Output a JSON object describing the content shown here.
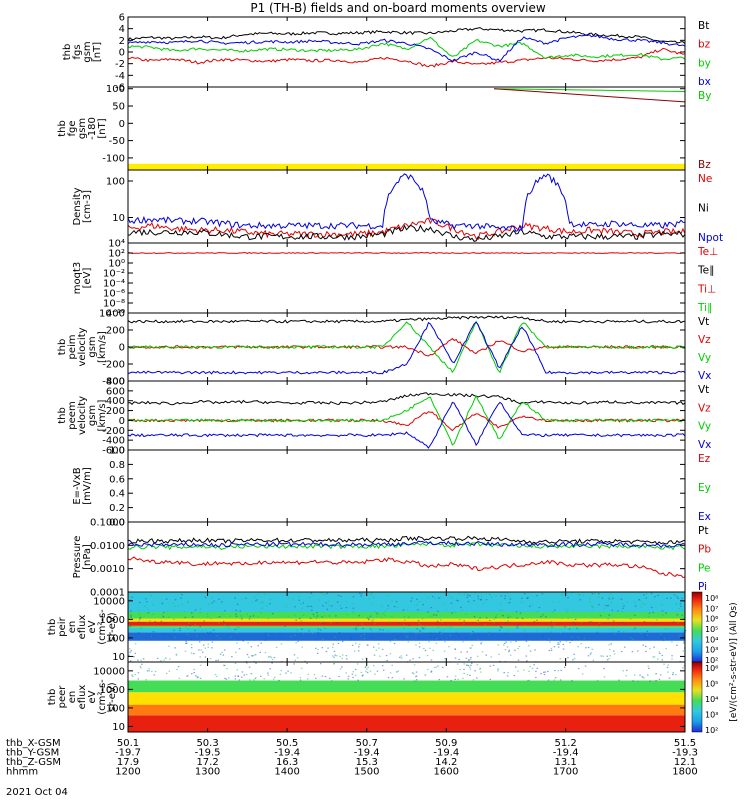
{
  "title": "P1 (TH-B) fields and on-board moments overview",
  "colors": {
    "black": "#000000",
    "red": "#e00000",
    "green": "#00cc00",
    "blue": "#0000dd",
    "yellow": "#ffee00",
    "darkred": "#8b0000"
  },
  "chart_data": [
    {
      "type": "line",
      "id": "fgs",
      "ylabel": [
        "thb",
        "fgs",
        "gsm",
        "[nT]"
      ],
      "ylim": [
        -6,
        6
      ],
      "ticks": [
        "6",
        "4",
        "2",
        "0",
        "-2",
        "-4",
        "-6"
      ],
      "tick_values": [
        6,
        4,
        2,
        0,
        -2,
        -4,
        -6
      ],
      "series": [
        {
          "name": "Bt",
          "color": "#000000",
          "values": [
            2.2,
            2.5,
            2.3,
            2.6,
            2.4,
            3.0,
            3.2,
            3.1,
            3.3,
            3.2,
            3.3,
            3.5,
            3.3,
            3.2,
            3.6,
            4.0,
            3.8,
            3.6,
            3.8,
            3.4,
            3.0,
            2.8,
            2.6,
            1.8,
            1.5
          ]
        },
        {
          "name": "bz",
          "color": "#e00000",
          "values": [
            -1.0,
            -1.5,
            -1.2,
            -1.8,
            -1.3,
            -1.4,
            -1.6,
            -1.3,
            -1.5,
            -1.4,
            -1.8,
            -1.0,
            -1.5,
            -2.5,
            -1.6,
            -2.2,
            -1.8,
            -1.4,
            -1.0,
            -1.2,
            -1.5,
            -1.3,
            -1.0,
            0.5,
            -0.5
          ]
        },
        {
          "name": "by",
          "color": "#00cc00",
          "values": [
            1.0,
            0.8,
            0.2,
            0.6,
            0.3,
            0.2,
            0.5,
            0.4,
            0.2,
            0.3,
            0.5,
            1.5,
            0.5,
            2.5,
            -1.0,
            2.0,
            1.0,
            1.5,
            -1.0,
            -0.5,
            -0.8,
            -0.6,
            -0.4,
            -1.2,
            -1.0
          ]
        },
        {
          "name": "bx",
          "color": "#0000dd",
          "values": [
            1.5,
            1.8,
            1.6,
            2.0,
            1.5,
            1.6,
            1.8,
            1.7,
            1.9,
            1.6,
            1.4,
            2.0,
            1.5,
            0.5,
            -1.5,
            0.0,
            -1.5,
            2.5,
            1.5,
            2.5,
            2.8,
            2.2,
            2.0,
            1.6,
            1.0
          ]
        }
      ]
    },
    {
      "type": "line",
      "id": "fge",
      "ylabel": [
        "thb",
        "fge",
        "gsm",
        "-180",
        "[nT]"
      ],
      "ylim": [
        -135,
        105
      ],
      "ticks": [
        "100",
        "50",
        "0",
        "-50",
        "-100"
      ],
      "tick_values": [
        100,
        50,
        0,
        -50,
        -100
      ],
      "series": [
        {
          "name": "By",
          "color": "#00cc00",
          "x": [
            51.02,
            51.5
          ],
          "values": [
            100,
            92
          ]
        },
        {
          "name": "Bz",
          "color": "#8b0000",
          "x": [
            51.02,
            51.5
          ],
          "values": [
            100,
            62
          ]
        }
      ]
    },
    {
      "type": "line",
      "id": "density",
      "ylabel": [
        "Density",
        "[cm-3]"
      ],
      "log": true,
      "ylim": [
        2,
        200
      ],
      "ticks": [
        "100",
        "10"
      ],
      "tick_values": [
        100,
        10
      ],
      "series": [
        {
          "name": "Ne",
          "color": "#e00000",
          "values": [
            5,
            6,
            5,
            4.5,
            4.5,
            4,
            3.5,
            3.5,
            3.5,
            3.5,
            3.5,
            4,
            6,
            8,
            5,
            3,
            4,
            6,
            5,
            4,
            4.5,
            4,
            3.5,
            4,
            4
          ]
        },
        {
          "name": "Ni",
          "color": "#000000",
          "values": [
            4,
            4,
            4,
            4,
            3.5,
            3,
            3,
            3,
            3,
            3,
            3,
            3.5,
            5,
            5,
            3,
            2.5,
            3,
            4,
            3,
            3,
            3,
            3,
            3,
            3.5,
            3.5
          ]
        },
        {
          "name": "Npot",
          "color": "#0000dd",
          "values": [
            8,
            9,
            8,
            8,
            7,
            6,
            6,
            6,
            6,
            6,
            6,
            6,
            150,
            8,
            6,
            6,
            5,
            5,
            150,
            7,
            6,
            7,
            6,
            6,
            7
          ]
        }
      ]
    },
    {
      "type": "line",
      "id": "moqt3",
      "ylabel": [
        "moqt3",
        "[eV]"
      ],
      "log": true,
      "ylim": [
        1e-10,
        10000
      ],
      "ticks": [
        "10⁴",
        "10²",
        "10⁰",
        "10⁻²",
        "10⁻⁴",
        "10⁻⁶",
        "10⁻⁸",
        "10⁻¹⁰"
      ],
      "tick_values": [
        10000,
        100,
        1,
        0.01,
        0.0001,
        1e-06,
        1e-08,
        1e-10
      ],
      "series": [
        {
          "name": "Te⊥",
          "color": "#e00000",
          "values": [
            100,
            100,
            100,
            100,
            100,
            100,
            100,
            100,
            100,
            100,
            100,
            100,
            100,
            100,
            100,
            100,
            100,
            100,
            100,
            100,
            100,
            100,
            100,
            100,
            100
          ]
        },
        {
          "name": "Te∥",
          "color": "#000000",
          "values": []
        },
        {
          "name": "Ti⊥",
          "color": "#e00000",
          "values": []
        },
        {
          "name": "Ti∥",
          "color": "#00cc00",
          "values": []
        }
      ]
    },
    {
      "type": "line",
      "id": "peim",
      "ylabel": [
        "thb",
        "peim",
        "velocity",
        "gsm",
        "[km/s]"
      ],
      "ylim": [
        -400,
        400
      ],
      "ticks": [
        "400",
        "200",
        "0",
        "-200",
        "-400"
      ],
      "tick_values": [
        400,
        200,
        0,
        -200,
        -400
      ],
      "series": [
        {
          "name": "Vt",
          "color": "#000000",
          "values": [
            300,
            300,
            300,
            300,
            300,
            300,
            300,
            300,
            300,
            300,
            300,
            300,
            320,
            330,
            340,
            350,
            350,
            350,
            300,
            300,
            300,
            300,
            300,
            300,
            300
          ]
        },
        {
          "name": "Vz",
          "color": "#e00000",
          "values": [
            0,
            0,
            0,
            0,
            0,
            0,
            0,
            0,
            0,
            0,
            0,
            0,
            0,
            -100,
            100,
            -80,
            80,
            -50,
            0,
            0,
            0,
            0,
            0,
            0,
            0
          ]
        },
        {
          "name": "Vy",
          "color": "#00cc00",
          "values": [
            0,
            0,
            0,
            0,
            0,
            0,
            0,
            0,
            0,
            0,
            0,
            0,
            300,
            0,
            -300,
            300,
            -300,
            300,
            0,
            0,
            0,
            0,
            0,
            0,
            0
          ]
        },
        {
          "name": "Vx",
          "color": "#0000dd",
          "values": [
            -300,
            -300,
            -300,
            -300,
            -300,
            -300,
            -300,
            -300,
            -300,
            -300,
            -300,
            -300,
            -200,
            300,
            -200,
            300,
            -250,
            250,
            -300,
            -300,
            -300,
            -300,
            -300,
            -300,
            -300
          ]
        }
      ]
    },
    {
      "type": "line",
      "id": "peem",
      "ylabel": [
        "thb",
        "peem",
        "velocity",
        "gsm",
        "[km/s]"
      ],
      "ylim": [
        -600,
        800
      ],
      "ticks": [
        "800",
        "600",
        "400",
        "200",
        "0",
        "-200",
        "-400",
        "-600"
      ],
      "tick_values": [
        800,
        600,
        400,
        200,
        0,
        -200,
        -400,
        -600
      ],
      "series": [
        {
          "name": "Vt",
          "color": "#000000",
          "values": [
            350,
            360,
            340,
            380,
            360,
            380,
            370,
            350,
            360,
            350,
            360,
            380,
            500,
            550,
            520,
            500,
            480,
            350,
            380,
            350,
            360,
            380,
            350,
            360,
            350
          ]
        },
        {
          "name": "Vz",
          "color": "#e00000",
          "values": [
            0,
            0,
            0,
            0,
            0,
            0,
            0,
            0,
            0,
            0,
            0,
            0,
            -100,
            200,
            -200,
            150,
            -150,
            100,
            0,
            0,
            0,
            0,
            0,
            0,
            0
          ]
        },
        {
          "name": "Vy",
          "color": "#00cc00",
          "values": [
            0,
            0,
            0,
            0,
            0,
            0,
            0,
            0,
            0,
            0,
            0,
            0,
            200,
            500,
            -500,
            500,
            -400,
            400,
            0,
            0,
            0,
            0,
            0,
            0,
            0
          ]
        },
        {
          "name": "Vx",
          "color": "#0000dd",
          "values": [
            -300,
            -300,
            -300,
            -300,
            -300,
            -300,
            -300,
            -300,
            -300,
            -300,
            -300,
            -300,
            -250,
            -550,
            400,
            -500,
            400,
            -300,
            -300,
            -300,
            -300,
            -300,
            -300,
            -300,
            -300
          ]
        }
      ]
    },
    {
      "type": "line",
      "id": "efield",
      "ylabel": [
        "E=-VxB",
        "[mV/m]"
      ],
      "ylim": [
        0,
        1
      ],
      "ticks": [
        "1.0",
        "0.8",
        "0.6",
        "0.4",
        "0.2",
        "0.0"
      ],
      "tick_values": [
        1.0,
        0.8,
        0.6,
        0.4,
        0.2,
        0.0
      ],
      "series": [
        {
          "name": "Ez",
          "color": "#e00000",
          "values": []
        },
        {
          "name": "Ey",
          "color": "#00cc00",
          "values": []
        },
        {
          "name": "Ex",
          "color": "#0000dd",
          "values": []
        }
      ]
    },
    {
      "type": "line",
      "id": "pressure",
      "ylabel": [
        "Pressure",
        "[nPa]"
      ],
      "log": true,
      "ylim": [
        0.0001,
        0.1
      ],
      "ticks": [
        "0.1000",
        "0.0100",
        "0.0010",
        "0.0001"
      ],
      "tick_values": [
        0.1,
        0.01,
        0.001,
        0.0001
      ],
      "series": [
        {
          "name": "Pt",
          "color": "#000000",
          "values": [
            0.015,
            0.016,
            0.015,
            0.017,
            0.015,
            0.016,
            0.017,
            0.016,
            0.017,
            0.016,
            0.017,
            0.016,
            0.02,
            0.02,
            0.02,
            0.02,
            0.018,
            0.015,
            0.014,
            0.015,
            0.015,
            0.015,
            0.014,
            0.013,
            0.014
          ]
        },
        {
          "name": "Pb",
          "color": "#e00000",
          "values": [
            0.003,
            0.002,
            0.002,
            0.0015,
            0.0018,
            0.0015,
            0.002,
            0.0018,
            0.002,
            0.0018,
            0.0018,
            0.0025,
            0.002,
            0.0012,
            0.0015,
            0.001,
            0.0012,
            0.0015,
            0.002,
            0.0015,
            0.0014,
            0.0015,
            0.0012,
            0.0006,
            0.0005
          ]
        },
        {
          "name": "Pe",
          "color": "#00cc00",
          "values": [
            0.008,
            0.009,
            0.008,
            0.009,
            0.008,
            0.009,
            0.009,
            0.009,
            0.009,
            0.009,
            0.009,
            0.009,
            0.01,
            0.012,
            0.01,
            0.011,
            0.01,
            0.009,
            0.009,
            0.009,
            0.009,
            0.009,
            0.009,
            0.008,
            0.008
          ]
        },
        {
          "name": "Pi",
          "color": "#0000dd",
          "values": [
            0.01,
            0.011,
            0.01,
            0.011,
            0.01,
            0.011,
            0.011,
            0.011,
            0.011,
            0.011,
            0.011,
            0.011,
            0.012,
            0.013,
            0.012,
            0.012,
            0.011,
            0.011,
            0.011,
            0.011,
            0.011,
            0.011,
            0.011,
            0.01,
            0.01
          ]
        }
      ]
    },
    {
      "type": "heatmap",
      "id": "peir",
      "ylabel": [
        "thb",
        "peir",
        "en",
        "eflux",
        "eV",
        "(cm²-s-",
        "sr-eV)"
      ],
      "log": true,
      "ylim": [
        5,
        30000
      ],
      "ticks": [
        "10000",
        "1000",
        "100",
        "10"
      ],
      "tick_values": [
        10000,
        1000,
        100,
        10
      ],
      "bands": [
        {
          "from": 5,
          "to": 70,
          "level": "white"
        },
        {
          "from": 70,
          "to": 200,
          "level": "mixed-blue"
        },
        {
          "from": 200,
          "to": 350,
          "level": "cyan"
        },
        {
          "from": 350,
          "to": 450,
          "level": "green"
        },
        {
          "from": 450,
          "to": 750,
          "level": "red"
        },
        {
          "from": 750,
          "to": 1100,
          "level": "yellow"
        },
        {
          "from": 1100,
          "to": 2500,
          "level": "green"
        },
        {
          "from": 2500,
          "to": 30000,
          "level": "cyan"
        }
      ]
    },
    {
      "type": "heatmap",
      "id": "peer",
      "ylabel": [
        "thb",
        "peer",
        "en",
        "eflux",
        "eV",
        "(cm²-s-",
        "sr-eV)"
      ],
      "log": true,
      "ylim": [
        5,
        30000
      ],
      "ticks": [
        "10000",
        "1000",
        "100",
        "10"
      ],
      "tick_values": [
        10000,
        1000,
        100,
        10
      ],
      "bands": [
        {
          "from": 5,
          "to": 40,
          "level": "red"
        },
        {
          "from": 40,
          "to": 150,
          "level": "orange"
        },
        {
          "from": 150,
          "to": 700,
          "level": "yellow"
        },
        {
          "from": 700,
          "to": 3000,
          "level": "green"
        },
        {
          "from": 3000,
          "to": 30000,
          "level": "white"
        }
      ]
    }
  ],
  "colorbar": {
    "label": "[eV/(cm²-s-str-eV)] (All Qs)",
    "ticks": [
      "10⁸",
      "10⁷",
      "10⁶",
      "10⁵",
      "10⁴",
      "10³",
      "10²"
    ]
  },
  "xaxis": {
    "rows": [
      {
        "label": "thb_X-GSM",
        "values": [
          "50.1",
          "50.3",
          "50.5",
          "50.7",
          "50.9",
          "51.2",
          "51.5"
        ]
      },
      {
        "label": "thb_Y-GSM",
        "values": [
          "-19.7",
          "-19.5",
          "-19.4",
          "-19.4",
          "-19.4",
          "-19.4",
          "-19.3"
        ]
      },
      {
        "label": "thb_Z-GSM",
        "values": [
          "17.9",
          "17.2",
          "16.3",
          "15.3",
          "14.2",
          "13.1",
          "12.1"
        ]
      },
      {
        "label": "hhmm",
        "values": [
          "1200",
          "1300",
          "1400",
          "1500",
          "1600",
          "1700",
          "1800"
        ]
      }
    ],
    "date": "2021 Oct 04"
  }
}
